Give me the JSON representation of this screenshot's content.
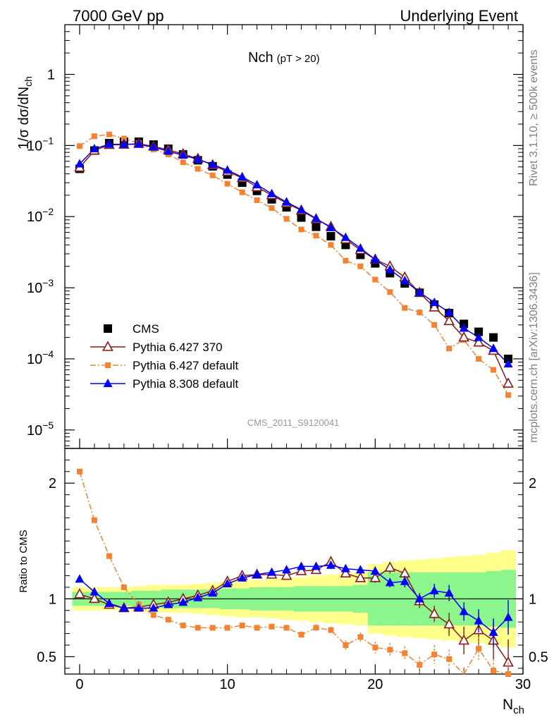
{
  "header": {
    "left_title": "7000 GeV pp",
    "right_title": "Underlying Event",
    "plot_title": "Nch",
    "plot_title_sub": "(pT > 20)",
    "analysis_label": "CMS_2011_S9120041",
    "side_label_top": "Rivet 3.1.10, ≥ 500k events",
    "side_label_bottom": "mcplots.cern.ch [arXiv:1306.3436]"
  },
  "chart_data": {
    "type": "scatter",
    "xlabel": "N",
    "xlabel_sub": "ch",
    "xlim": [
      -1,
      30
    ],
    "x_ticks": [
      0,
      10,
      20,
      30
    ],
    "x": [
      0,
      1,
      2,
      3,
      4,
      5,
      6,
      7,
      8,
      9,
      10,
      11,
      12,
      13,
      14,
      15,
      16,
      17,
      18,
      19,
      20,
      21,
      22,
      23,
      24,
      25,
      26,
      27,
      28,
      29
    ],
    "upper": {
      "ylabel": "1/σ dσ/dN",
      "ylabel_sub": "ch",
      "yscale": "log",
      "ylim": [
        5.5e-06,
        5
      ],
      "y_ticks": [
        {
          "value": 1,
          "label": "1"
        },
        {
          "value": 0.1,
          "label": "10",
          "exp": "−1"
        },
        {
          "value": 0.01,
          "label": "10",
          "exp": "−2"
        },
        {
          "value": 0.001,
          "label": "10",
          "exp": "−3"
        },
        {
          "value": 0.0001,
          "label": "10",
          "exp": "−4"
        },
        {
          "value": 1e-05,
          "label": "10",
          "exp": "−5"
        }
      ],
      "series": [
        {
          "name": "CMS",
          "color": "#000000",
          "marker": "square",
          "line": "none",
          "values": [
            0.047,
            0.085,
            0.108,
            0.113,
            0.113,
            0.103,
            0.09,
            0.075,
            0.062,
            0.051,
            0.039,
            0.03,
            0.023,
            0.0175,
            0.0135,
            0.0097,
            0.0072,
            0.0053,
            0.004,
            0.0029,
            0.0022,
            0.0016,
            0.00115,
            0.00085,
            0.00058,
            0.00044,
            0.00031,
            0.00024,
            0.0002,
            0.0001
          ]
        },
        {
          "name": "Pythia 6.427 370",
          "color": "#8b1a1a",
          "marker": "open-triangle",
          "line": "solid",
          "values": [
            0.049,
            0.085,
            0.102,
            0.103,
            0.106,
            0.097,
            0.087,
            0.076,
            0.065,
            0.053,
            0.043,
            0.035,
            0.026,
            0.02,
            0.0155,
            0.0122,
            0.0092,
            0.0072,
            0.0048,
            0.0034,
            0.0025,
            0.002,
            0.0014,
            0.00085,
            0.00053,
            0.00034,
            0.0002,
            0.00017,
            0.00013,
            4.5e-05
          ]
        },
        {
          "name": "Pythia 6.427 default",
          "color": "#f58231",
          "marker": "small-square",
          "line": "dashdot",
          "values": [
            0.098,
            0.135,
            0.143,
            0.125,
            0.108,
            0.088,
            0.075,
            0.058,
            0.047,
            0.038,
            0.029,
            0.022,
            0.017,
            0.0132,
            0.0093,
            0.0066,
            0.0054,
            0.004,
            0.0024,
            0.002,
            0.0013,
            0.00087,
            0.00052,
            0.00045,
            0.0003,
            0.00014,
            0.000185,
            0.0001,
            7e-05,
            3.1e-05
          ]
        },
        {
          "name": "Pythia 8.308 default",
          "color": "#0000ff",
          "marker": "triangle",
          "line": "solid",
          "values": [
            0.055,
            0.09,
            0.104,
            0.104,
            0.104,
            0.095,
            0.083,
            0.073,
            0.064,
            0.054,
            0.045,
            0.036,
            0.028,
            0.021,
            0.016,
            0.0125,
            0.0094,
            0.007,
            0.0051,
            0.0036,
            0.0025,
            0.0018,
            0.00126,
            0.00086,
            0.00062,
            0.00045,
            0.00027,
            0.0002,
            0.00014,
            8.5e-05
          ]
        }
      ],
      "legend_position": "lower-left"
    },
    "lower": {
      "ylabel": "Ratio to CMS",
      "ylim": [
        0.35,
        2.3
      ],
      "y_ticks": [
        {
          "value": 0.5,
          "label": "0.5"
        },
        {
          "value": 1,
          "label": "1"
        },
        {
          "value": 2,
          "label": "2"
        }
      ],
      "band_green_halfwidth": [
        0.06,
        0.06,
        0.06,
        0.06,
        0.07,
        0.07,
        0.08,
        0.08,
        0.08,
        0.08,
        0.09,
        0.09,
        0.1,
        0.1,
        0.1,
        0.11,
        0.11,
        0.11,
        0.11,
        0.12,
        0.23,
        0.23,
        0.23,
        0.23,
        0.23,
        0.23,
        0.23,
        0.23,
        0.24,
        0.25
      ],
      "band_yellow_halfwidth": [
        0.1,
        0.1,
        0.1,
        0.1,
        0.11,
        0.12,
        0.12,
        0.12,
        0.13,
        0.14,
        0.15,
        0.16,
        0.16,
        0.17,
        0.18,
        0.19,
        0.2,
        0.21,
        0.22,
        0.23,
        0.3,
        0.32,
        0.33,
        0.34,
        0.35,
        0.36,
        0.37,
        0.38,
        0.4,
        0.42
      ],
      "series": [
        {
          "name": "Pythia 6.427 370",
          "color": "#8b1a1a",
          "marker": "open-triangle",
          "line": "solid",
          "values": [
            1.04,
            1.0,
            0.95,
            0.92,
            0.93,
            0.95,
            0.97,
            1.0,
            1.03,
            1.07,
            1.15,
            1.2,
            1.21,
            1.21,
            1.2,
            1.24,
            1.25,
            1.32,
            1.22,
            1.18,
            1.18,
            1.27,
            1.22,
            0.98,
            0.87,
            0.78,
            0.64,
            0.73,
            0.64,
            0.45
          ],
          "err": [
            0.01,
            0.01,
            0.01,
            0.01,
            0.01,
            0.01,
            0.01,
            0.01,
            0.01,
            0.01,
            0.01,
            0.01,
            0.01,
            0.02,
            0.02,
            0.02,
            0.02,
            0.03,
            0.03,
            0.03,
            0.04,
            0.05,
            0.05,
            0.06,
            0.07,
            0.1,
            0.12,
            0.14,
            0.16,
            0.2
          ]
        },
        {
          "name": "Pythia 6.427 default",
          "color": "#f58231",
          "marker": "small-square",
          "line": "dashdot",
          "values": [
            2.1,
            1.68,
            1.37,
            1.1,
            0.95,
            0.86,
            0.82,
            0.77,
            0.75,
            0.75,
            0.75,
            0.77,
            0.75,
            0.76,
            0.75,
            0.69,
            0.75,
            0.73,
            0.6,
            0.67,
            0.58,
            0.56,
            0.53,
            0.43,
            0.52,
            0.48,
            0.32,
            0.57,
            0.38,
            0.35
          ],
          "err": [
            0.01,
            0.01,
            0.01,
            0.01,
            0.01,
            0.01,
            0.01,
            0.01,
            0.01,
            0.01,
            0.01,
            0.01,
            0.02,
            0.02,
            0.02,
            0.03,
            0.03,
            0.03,
            0.04,
            0.04,
            0.05,
            0.06,
            0.06,
            0.07,
            0.08,
            0.08,
            0.09,
            0.1,
            0.1,
            0.1
          ]
        },
        {
          "name": "Pythia 8.308 default",
          "color": "#0000ff",
          "marker": "triangle",
          "line": "solid",
          "values": [
            1.17,
            1.06,
            0.96,
            0.92,
            0.92,
            0.92,
            0.95,
            0.97,
            1.01,
            1.05,
            1.13,
            1.18,
            1.21,
            1.23,
            1.25,
            1.28,
            1.28,
            1.29,
            1.26,
            1.25,
            1.24,
            1.14,
            1.15,
            1.0,
            1.07,
            1.05,
            0.89,
            0.81,
            0.71,
            0.84
          ],
          "err": [
            0.01,
            0.01,
            0.01,
            0.01,
            0.01,
            0.01,
            0.01,
            0.01,
            0.01,
            0.01,
            0.01,
            0.01,
            0.01,
            0.02,
            0.02,
            0.02,
            0.02,
            0.03,
            0.03,
            0.03,
            0.04,
            0.04,
            0.05,
            0.05,
            0.06,
            0.07,
            0.08,
            0.1,
            0.12,
            0.15
          ]
        }
      ]
    }
  }
}
